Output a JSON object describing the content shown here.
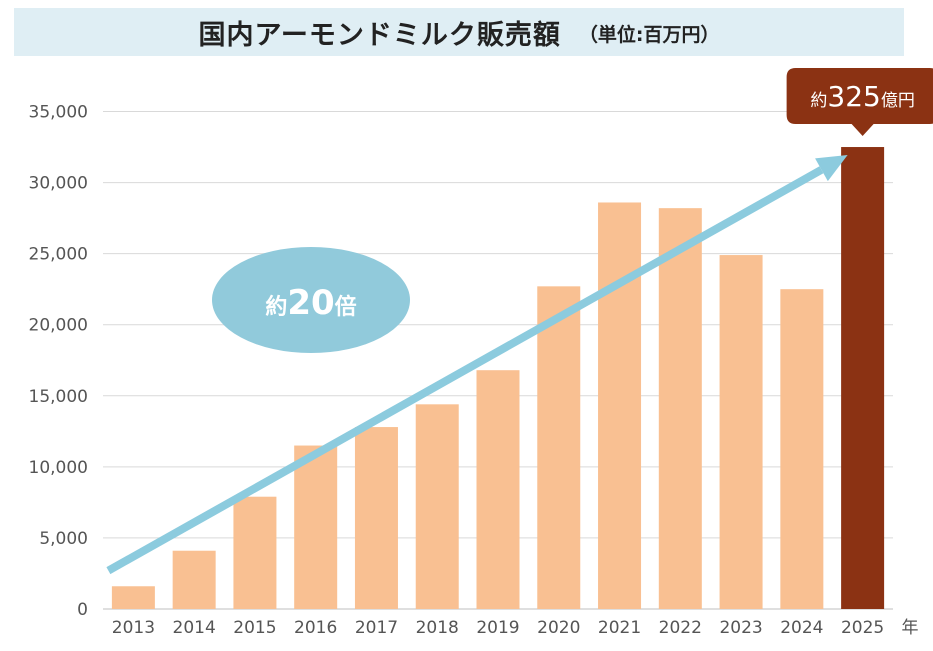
{
  "title": "国内アーモンドミルク販売額",
  "unit_label": "（単位:百万円）",
  "x_unit": "年",
  "growth_label_prefix": "約",
  "growth_label_number": "20",
  "growth_label_suffix": "倍",
  "callout_prefix": "約",
  "callout_number": "325",
  "callout_suffix": "億円",
  "colors": {
    "bar": "#f9c092",
    "highlight_bar": "#8b3213",
    "trend_arrow": "#8ccbde",
    "ellipse": "#91cadb",
    "callout": "#8b3213",
    "title_bg": "#dfeef4",
    "grid": "#d9d9d9"
  },
  "chart_data": {
    "type": "bar",
    "categories": [
      "2013",
      "2014",
      "2015",
      "2016",
      "2017",
      "2018",
      "2019",
      "2020",
      "2021",
      "2022",
      "2023",
      "2024",
      "2025"
    ],
    "values": [
      1600,
      4100,
      7900,
      11500,
      12800,
      14400,
      16800,
      22700,
      28600,
      28200,
      24900,
      22500,
      32500
    ],
    "highlight_index": 12,
    "ylim": [
      0,
      35000
    ],
    "yticks": [
      0,
      5000,
      10000,
      15000,
      20000,
      25000,
      30000,
      35000
    ],
    "ytick_labels": [
      "0",
      "5,000",
      "10,000",
      "15,000",
      "20,000",
      "25,000",
      "30,000",
      "35,000"
    ],
    "grid": true,
    "trend_arrow": {
      "from": [
        2013,
        2700
      ],
      "to": [
        2025,
        32500
      ]
    }
  }
}
